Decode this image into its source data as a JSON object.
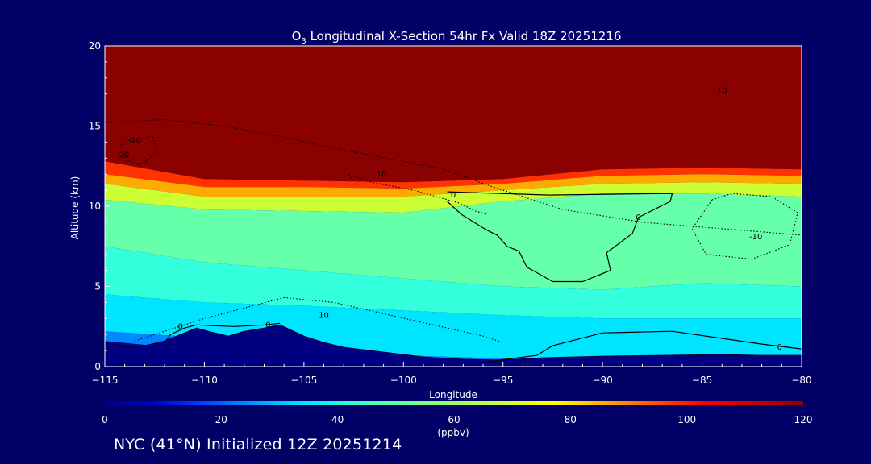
{
  "chart_data": {
    "type": "heatmap",
    "title": "O3 Longitudinal X-Section 54hr  Fx Valid 18Z 20251216",
    "title_parts": {
      "pre": "O",
      "sub": "3",
      "post": " Longitudinal X-Section 54hr  Fx Valid 18Z 20251216"
    },
    "xlabel": "Longitude",
    "ylabel": "Altitude (km)",
    "xlim": [
      -115,
      -80
    ],
    "ylim": [
      0,
      20
    ],
    "x_ticks": [
      -115,
      -110,
      -105,
      -100,
      -95,
      -90,
      -85,
      -80
    ],
    "x_tick_labels": [
      "−115",
      "−110",
      "−105",
      "−100",
      "−95",
      "−90",
      "−85",
      "−80"
    ],
    "y_ticks": [
      0,
      5,
      10,
      15,
      20
    ],
    "y_tick_labels": [
      "0",
      "5",
      "10",
      "15",
      "20"
    ],
    "colorbar": {
      "min": 0,
      "max": 120,
      "ticks": [
        0,
        20,
        40,
        60,
        80,
        100,
        120
      ],
      "tick_labels": [
        "0",
        "20",
        "40",
        "60",
        "80",
        "100",
        "120"
      ],
      "units": "(ppbv)",
      "colors": [
        "#000080",
        "#0000cd",
        "#0044ff",
        "#0099ff",
        "#00e5ff",
        "#33ffcc",
        "#66ff99",
        "#99ff66",
        "#ccff33",
        "#ffff00",
        "#ffaa00",
        "#ff5500",
        "#ff0000",
        "#cc0000",
        "#8b0000"
      ]
    },
    "ozone_layers": [
      {
        "level": "stratosphere",
        "ppbv": 120,
        "color": "#8b0000",
        "top_km": [
          20,
          20,
          20,
          20,
          20,
          20,
          20,
          20
        ],
        "bottom_km": [
          12.8,
          11.7,
          11.6,
          11.5,
          11.7,
          12.3,
          12.4,
          12.3
        ]
      },
      {
        "level": "tropopause_band_1",
        "ppbv": 100,
        "color": "#ff3300",
        "top_km": [
          12.8,
          11.7,
          11.6,
          11.5,
          11.7,
          12.3,
          12.4,
          12.3
        ],
        "bottom_km": [
          12.0,
          11.2,
          11.2,
          11.1,
          11.4,
          11.9,
          12.0,
          11.9
        ]
      },
      {
        "level": "tropopause_band_2",
        "ppbv": 80,
        "color": "#ffaa00",
        "top_km": [
          12.0,
          11.2,
          11.2,
          11.1,
          11.4,
          11.9,
          12.0,
          11.9
        ],
        "bottom_km": [
          11.4,
          10.6,
          10.6,
          10.6,
          11.0,
          11.4,
          11.5,
          11.4
        ]
      },
      {
        "level": "upper_troposphere",
        "ppbv": 70,
        "color": "#ccff33",
        "top_km": [
          11.4,
          10.6,
          10.6,
          10.6,
          11.0,
          11.4,
          11.5,
          11.4
        ],
        "bottom_km": [
          10.4,
          9.8,
          9.7,
          9.6,
          10.3,
          10.8,
          10.8,
          10.6
        ]
      },
      {
        "level": "mid_troposphere",
        "ppbv": 55,
        "color": "#66ffaa",
        "top_km": [
          10.4,
          9.8,
          9.7,
          9.6,
          10.3,
          10.8,
          10.8,
          10.6
        ],
        "bottom_km": [
          7.5,
          6.5,
          6.0,
          5.5,
          5.0,
          4.8,
          5.2,
          5.0
        ]
      },
      {
        "level": "lower_troposphere",
        "ppbv": 45,
        "color": "#33ffdd",
        "top_km": [
          7.5,
          6.5,
          6.0,
          5.5,
          5.0,
          4.8,
          5.2,
          5.0
        ],
        "bottom_km": [
          4.5,
          4.0,
          3.8,
          3.5,
          3.2,
          3.0,
          3.0,
          3.0
        ]
      },
      {
        "level": "boundary_layer",
        "ppbv": 38,
        "color": "#00e5ff",
        "top_km": [
          4.5,
          4.0,
          3.8,
          3.5,
          3.2,
          3.0,
          3.0,
          3.0
        ],
        "bottom_km": [
          2.2,
          1.8,
          1.2,
          0.7,
          0.5,
          0.6,
          0.7,
          0.7
        ]
      },
      {
        "level": "surface",
        "ppbv": 25,
        "color": "#0088ff",
        "top_km": [
          2.2,
          1.8,
          1.2,
          0.7,
          0.5,
          0.6,
          0.7,
          0.7
        ],
        "bottom_km": [
          1.6,
          1.0,
          0.6,
          0.3,
          0.0,
          0.0,
          0.0,
          0.0
        ]
      }
    ],
    "layer_x": [
      -115,
      -110,
      -105,
      -100,
      -95,
      -90,
      -85,
      -80
    ],
    "terrain": {
      "lon": [
        -115,
        -114,
        -113,
        -112,
        -111,
        -110.4,
        -109.8,
        -108.8,
        -108,
        -107,
        -106.2,
        -105,
        -104,
        -103,
        -101,
        -99,
        -97,
        -95,
        -93,
        -90,
        -87,
        -84,
        -82,
        -80
      ],
      "alt_km": [
        1.5,
        1.2,
        1.3,
        1.6,
        2.1,
        2.4,
        2.2,
        1.9,
        2.2,
        2.4,
        2.6,
        1.9,
        1.5,
        1.2,
        0.9,
        0.6,
        0.45,
        0.4,
        0.55,
        0.65,
        0.7,
        0.75,
        0.7,
        0.7
      ]
    },
    "contours": [
      {
        "label": "0",
        "style": "solid",
        "lon": [
          -97.8,
          -97.1,
          -95.8,
          -95.3,
          -94.8,
          -94.2,
          -93.8,
          -92.5,
          -91.0,
          -89.6,
          -89.8,
          -88.5,
          -88.2,
          -86.6,
          -86.5,
          -92.7,
          -97.8
        ],
        "alt_km": [
          10.3,
          9.5,
          8.5,
          8.2,
          7.5,
          7.2,
          6.2,
          5.3,
          5.3,
          6.0,
          7.1,
          8.3,
          9.3,
          10.3,
          10.8,
          10.7,
          10.9
        ]
      },
      {
        "label": "0",
        "style": "solid",
        "lon": [
          -95.8,
          -93.3,
          -92.5,
          -90.0,
          -86.5,
          -82.0,
          -80
        ],
        "alt_km": [
          0.3,
          0.7,
          1.3,
          2.1,
          2.2,
          1.4,
          1.1
        ]
      },
      {
        "label": "0",
        "style": "solid",
        "lon": [
          -112,
          -111.7,
          -111,
          -110.4,
          -108.5,
          -107,
          -106.2
        ],
        "alt_km": [
          1.5,
          2.0,
          2.4,
          2.6,
          2.5,
          2.6,
          2.7
        ]
      },
      {
        "label": "-10",
        "style": "dotted",
        "lon": [
          -115,
          -112,
          -109,
          -106,
          -103,
          -100,
          -98,
          -95.5,
          -92,
          -88,
          -85,
          -82,
          -80
        ],
        "alt_km": [
          15.2,
          15.4,
          15.0,
          14.3,
          13.5,
          12.8,
          12.3,
          11.2,
          9.8,
          9.0,
          8.7,
          8.4,
          8.2
        ]
      },
      {
        "label": "-10",
        "style": "dotted",
        "lon": [
          -84.5,
          -85.5,
          -84.8,
          -82.5,
          -80.6,
          -80.2,
          -81.5,
          -83.5,
          -84.5
        ],
        "alt_km": [
          10.4,
          8.6,
          7.0,
          6.7,
          7.6,
          9.6,
          10.6,
          10.8,
          10.4
        ]
      },
      {
        "label": "10",
        "style": "dotted",
        "lon": [
          -113.5,
          -110,
          -106,
          -103.5,
          -101,
          -98.5,
          -96,
          -95
        ],
        "alt_km": [
          1.6,
          3.0,
          4.3,
          4.0,
          3.3,
          2.6,
          1.9,
          1.5
        ]
      },
      {
        "label": "10",
        "style": "dotted",
        "lon": [
          -102.5,
          -102.8,
          -101.6,
          -99.5,
          -97.2,
          -96.4,
          -95.8
        ],
        "alt_km": [
          11.6,
          12.0,
          11.5,
          11.0,
          10.2,
          9.7,
          9.5
        ]
      },
      {
        "label": "-10",
        "style": "dotted",
        "lon": [
          -112.6,
          -114.2,
          -114.0,
          -113.1,
          -112.4,
          -112.6
        ],
        "alt_km": [
          14.4,
          13.8,
          12.9,
          12.6,
          13.4,
          14.4
        ]
      }
    ],
    "contour_labels": [
      {
        "text": "0",
        "lon": -97.5,
        "alt_km": 10.7
      },
      {
        "text": "0",
        "lon": -88.2,
        "alt_km": 9.3
      },
      {
        "text": "0",
        "lon": -81.1,
        "alt_km": 1.2
      },
      {
        "text": "0",
        "lon": -111.2,
        "alt_km": 2.5
      },
      {
        "text": "0",
        "lon": -106.8,
        "alt_km": 2.6
      },
      {
        "text": "-10",
        "lon": -113.5,
        "alt_km": 14.1
      },
      {
        "text": "-20",
        "lon": -114.1,
        "alt_km": 13.2
      },
      {
        "text": "10",
        "lon": -101.1,
        "alt_km": 12.0
      },
      {
        "text": "10",
        "lon": -84.0,
        "alt_km": 17.2
      },
      {
        "text": "-10",
        "lon": -82.3,
        "alt_km": 8.1
      },
      {
        "text": "10",
        "lon": -104.0,
        "alt_km": 3.2
      }
    ]
  },
  "footer": {
    "caption": "NYC (41°N) Initialized 12Z 20251214"
  }
}
